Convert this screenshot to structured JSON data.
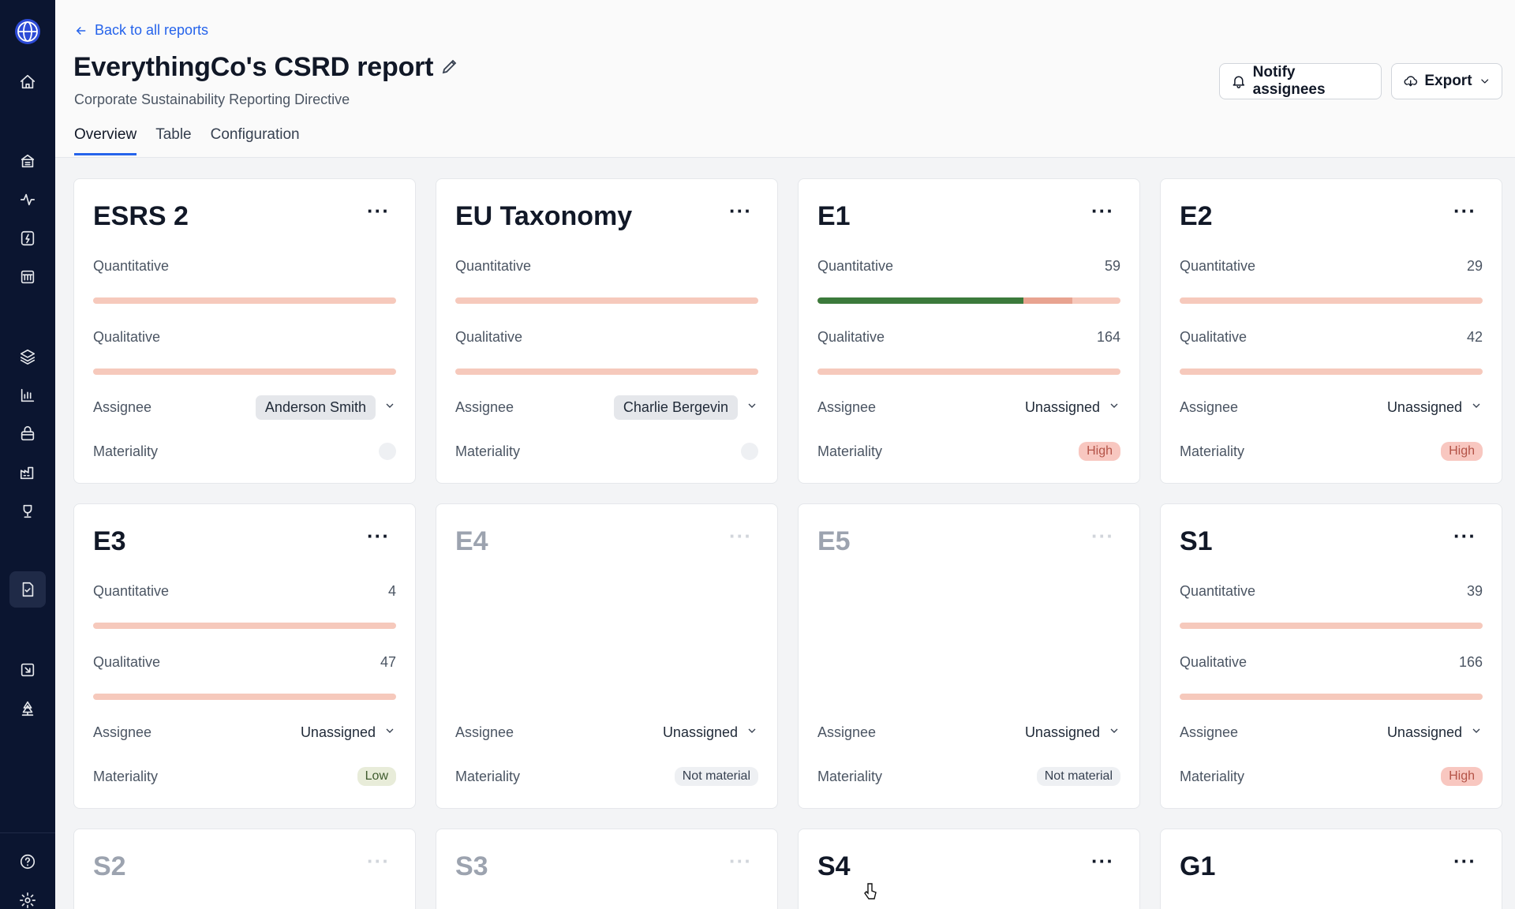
{
  "header": {
    "back_label": "Back to all reports",
    "title": "EverythingCo's CSRD report",
    "subtitle": "Corporate Sustainability Reporting Directive",
    "tabs": [
      "Overview",
      "Table",
      "Configuration"
    ],
    "active_tab": "Overview",
    "notify_label": "Notify assignees",
    "export_label": "Export"
  },
  "labels": {
    "quantitative": "Quantitative",
    "qualitative": "Qualitative",
    "assignee": "Assignee",
    "materiality": "Materiality"
  },
  "cards": [
    {
      "title": "ESRS 2",
      "quant": "",
      "qual": "",
      "assignee": "Anderson Smith",
      "assigned": true,
      "materiality": "",
      "mat_type": "empty",
      "enabled": true,
      "quant_progress": 0
    },
    {
      "title": "EU Taxonomy",
      "quant": "",
      "qual": "",
      "assignee": "Charlie Bergevin",
      "assigned": true,
      "materiality": "",
      "mat_type": "empty",
      "enabled": true,
      "quant_progress": 0
    },
    {
      "title": "E1",
      "quant": "59",
      "qual": "164",
      "assignee": "Unassigned",
      "assigned": false,
      "materiality": "High",
      "mat_type": "high",
      "enabled": true,
      "quant_progress": 0.68,
      "quant_progress2": 0.84
    },
    {
      "title": "E2",
      "quant": "29",
      "qual": "42",
      "assignee": "Unassigned",
      "assigned": false,
      "materiality": "High",
      "mat_type": "high",
      "enabled": true,
      "quant_progress": 0
    },
    {
      "title": "E3",
      "quant": "4",
      "qual": "47",
      "assignee": "Unassigned",
      "assigned": false,
      "materiality": "Low",
      "mat_type": "low",
      "enabled": true,
      "quant_progress": 0
    },
    {
      "title": "E4",
      "assignee": "Unassigned",
      "assigned": false,
      "materiality": "Not material",
      "mat_type": "notmat",
      "enabled": false
    },
    {
      "title": "E5",
      "assignee": "Unassigned",
      "assigned": false,
      "materiality": "Not material",
      "mat_type": "notmat",
      "enabled": false
    },
    {
      "title": "S1",
      "quant": "39",
      "qual": "166",
      "assignee": "Unassigned",
      "assigned": false,
      "materiality": "High",
      "mat_type": "high",
      "enabled": true,
      "quant_progress": 0
    },
    {
      "title": "S2",
      "enabled": false,
      "partial": true
    },
    {
      "title": "S3",
      "enabled": false,
      "partial": true
    },
    {
      "title": "S4",
      "enabled": true,
      "partial": true
    },
    {
      "title": "G1",
      "enabled": true,
      "partial": true
    }
  ],
  "sidebar": {
    "icons": [
      "home-icon",
      "building-icon",
      "activity-icon",
      "file-icon",
      "table-icon",
      "layers-icon",
      "chart-icon",
      "basket-icon",
      "factory-icon",
      "trophy-icon",
      "report-icon",
      "import-icon",
      "tree-icon",
      "help-icon",
      "settings-icon"
    ]
  }
}
